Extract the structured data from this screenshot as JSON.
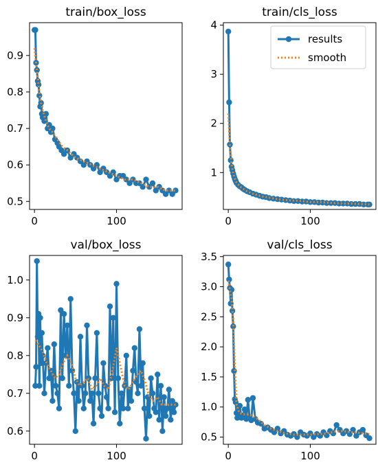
{
  "colors": {
    "results": "#1f77b4",
    "smooth": "#ff7f0e"
  },
  "legend": {
    "results_label": "results",
    "smooth_label": "smooth",
    "placement": "upper right of train/cls_loss panel"
  },
  "chart_data": [
    {
      "type": "line",
      "title": "train/box_loss",
      "xlabel": "",
      "ylabel": "",
      "xlim": [
        -6,
        180
      ],
      "ylim": [
        0.478,
        0.99
      ],
      "xticks": [
        0,
        100
      ],
      "yticks": [
        0.5,
        0.6,
        0.7,
        0.8,
        0.9
      ],
      "ytick_labels": [
        "0.5",
        "0.6",
        "0.7",
        "0.8",
        "0.9"
      ],
      "grid": false,
      "series": [
        {
          "name": "results",
          "x": [
            0,
            1,
            2,
            3,
            4,
            5,
            6,
            7,
            8,
            9,
            10,
            12,
            14,
            16,
            18,
            20,
            22,
            25,
            28,
            30,
            33,
            36,
            40,
            44,
            48,
            52,
            56,
            60,
            64,
            68,
            72,
            76,
            80,
            84,
            88,
            92,
            96,
            100,
            104,
            108,
            112,
            116,
            120,
            124,
            128,
            132,
            136,
            140,
            144,
            148,
            152,
            156,
            160,
            164,
            168,
            172
          ],
          "y": [
            0.97,
            0.97,
            0.88,
            0.86,
            0.83,
            0.82,
            0.79,
            0.76,
            0.77,
            0.74,
            0.73,
            0.72,
            0.74,
            0.7,
            0.71,
            0.69,
            0.7,
            0.67,
            0.66,
            0.65,
            0.64,
            0.63,
            0.64,
            0.62,
            0.63,
            0.62,
            0.61,
            0.6,
            0.61,
            0.6,
            0.59,
            0.6,
            0.58,
            0.59,
            0.58,
            0.57,
            0.58,
            0.56,
            0.57,
            0.57,
            0.56,
            0.55,
            0.56,
            0.55,
            0.55,
            0.54,
            0.56,
            0.54,
            0.55,
            0.53,
            0.54,
            0.53,
            0.52,
            0.53,
            0.52,
            0.53
          ]
        },
        {
          "name": "smooth",
          "x": [
            0,
            2,
            4,
            6,
            8,
            10,
            14,
            18,
            22,
            28,
            34,
            40,
            50,
            60,
            70,
            80,
            90,
            100,
            110,
            120,
            130,
            140,
            150,
            160,
            172
          ],
          "y": [
            0.92,
            0.88,
            0.84,
            0.8,
            0.77,
            0.75,
            0.72,
            0.7,
            0.69,
            0.67,
            0.65,
            0.64,
            0.62,
            0.61,
            0.6,
            0.59,
            0.58,
            0.57,
            0.56,
            0.56,
            0.55,
            0.54,
            0.54,
            0.53,
            0.53
          ]
        }
      ]
    },
    {
      "type": "line",
      "title": "train/cls_loss",
      "xlabel": "",
      "ylabel": "",
      "xlim": [
        -6,
        180
      ],
      "ylim": [
        0.25,
        4.05
      ],
      "xticks": [
        0,
        100
      ],
      "yticks": [
        1,
        2,
        3,
        4
      ],
      "ytick_labels": [
        "1",
        "2",
        "3",
        "4"
      ],
      "grid": false,
      "series": [
        {
          "name": "results",
          "x": [
            0,
            1,
            2,
            3,
            4,
            5,
            6,
            7,
            8,
            9,
            10,
            12,
            14,
            16,
            18,
            20,
            23,
            26,
            30,
            34,
            38,
            42,
            46,
            50,
            55,
            60,
            65,
            70,
            75,
            80,
            85,
            90,
            95,
            100,
            105,
            110,
            115,
            120,
            125,
            130,
            135,
            140,
            145,
            150,
            155,
            160,
            165,
            170,
            172
          ],
          "y": [
            3.87,
            2.43,
            1.57,
            1.25,
            1.12,
            1.05,
            0.98,
            0.92,
            0.87,
            0.83,
            0.79,
            0.75,
            0.72,
            0.7,
            0.67,
            0.65,
            0.62,
            0.6,
            0.57,
            0.55,
            0.53,
            0.51,
            0.5,
            0.48,
            0.47,
            0.46,
            0.45,
            0.44,
            0.43,
            0.42,
            0.42,
            0.41,
            0.41,
            0.4,
            0.4,
            0.39,
            0.39,
            0.38,
            0.38,
            0.38,
            0.37,
            0.37,
            0.37,
            0.36,
            0.36,
            0.36,
            0.35,
            0.35,
            0.35
          ]
        },
        {
          "name": "smooth",
          "x": [
            0,
            2,
            4,
            6,
            8,
            10,
            14,
            18,
            22,
            28,
            34,
            40,
            50,
            60,
            70,
            80,
            90,
            100,
            110,
            120,
            130,
            140,
            150,
            160,
            172
          ],
          "y": [
            2.2,
            1.55,
            1.18,
            0.98,
            0.88,
            0.8,
            0.72,
            0.67,
            0.63,
            0.58,
            0.55,
            0.52,
            0.49,
            0.46,
            0.44,
            0.43,
            0.42,
            0.4,
            0.4,
            0.39,
            0.38,
            0.37,
            0.37,
            0.36,
            0.35
          ]
        }
      ]
    },
    {
      "type": "line",
      "title": "val/box_loss",
      "xlabel": "",
      "ylabel": "",
      "xlim": [
        -6,
        180
      ],
      "ylim": [
        0.565,
        1.065
      ],
      "xticks": [
        0,
        100
      ],
      "yticks": [
        0.6,
        0.7,
        0.8,
        0.9,
        1.0
      ],
      "ytick_labels": [
        "0.6",
        "0.7",
        "0.8",
        "0.9",
        "1.0"
      ],
      "grid": false,
      "series": [
        {
          "name": "results",
          "x": [
            1,
            2,
            3,
            4,
            5,
            6,
            7,
            8,
            9,
            10,
            12,
            14,
            16,
            18,
            20,
            22,
            24,
            26,
            28,
            30,
            32,
            34,
            36,
            38,
            40,
            42,
            44,
            46,
            48,
            50,
            52,
            54,
            56,
            58,
            60,
            62,
            64,
            66,
            68,
            70,
            72,
            74,
            76,
            78,
            80,
            82,
            84,
            86,
            88,
            90,
            92,
            94,
            96,
            98,
            100,
            102,
            104,
            106,
            108,
            110,
            112,
            114,
            116,
            118,
            120,
            122,
            124,
            126,
            128,
            130,
            132,
            134,
            136,
            138,
            140,
            142,
            144,
            146,
            148,
            150,
            152,
            154,
            156,
            158,
            160,
            162,
            164,
            166,
            168,
            170,
            172
          ],
          "y": [
            0.72,
            0.77,
            1.05,
            0.85,
            0.91,
            0.72,
            0.9,
            0.78,
            0.86,
            0.8,
            0.7,
            0.78,
            0.82,
            0.74,
            0.76,
            0.68,
            0.83,
            0.72,
            0.7,
            0.66,
            0.92,
            0.74,
            0.91,
            0.8,
            0.88,
            0.72,
            0.95,
            0.76,
            0.7,
            0.6,
            0.73,
            0.68,
            0.85,
            0.72,
            0.66,
            0.7,
            0.88,
            0.74,
            0.68,
            0.7,
            0.62,
            0.74,
            0.86,
            0.7,
            0.66,
            0.64,
            0.78,
            0.72,
            0.69,
            0.66,
            0.93,
            0.74,
            0.9,
            0.65,
            0.99,
            0.74,
            0.62,
            0.7,
            0.66,
            0.72,
            0.8,
            0.66,
            0.71,
            0.68,
            0.76,
            0.82,
            0.73,
            0.7,
            0.87,
            0.72,
            0.78,
            0.66,
            0.58,
            0.69,
            0.64,
            0.74,
            0.7,
            0.66,
            0.65,
            0.75,
            0.63,
            0.72,
            0.6,
            0.69,
            0.64,
            0.66,
            0.71,
            0.63,
            0.68,
            0.65,
            0.67
          ]
        },
        {
          "name": "smooth",
          "x": [
            1,
            5,
            10,
            15,
            20,
            25,
            30,
            35,
            40,
            45,
            50,
            55,
            60,
            65,
            70,
            75,
            80,
            85,
            90,
            95,
            100,
            105,
            110,
            115,
            120,
            125,
            130,
            135,
            140,
            145,
            150,
            155,
            160,
            165,
            172
          ],
          "y": [
            0.84,
            0.83,
            0.81,
            0.78,
            0.76,
            0.74,
            0.75,
            0.78,
            0.8,
            0.78,
            0.74,
            0.72,
            0.73,
            0.74,
            0.71,
            0.72,
            0.74,
            0.72,
            0.71,
            0.76,
            0.82,
            0.77,
            0.72,
            0.71,
            0.73,
            0.75,
            0.76,
            0.73,
            0.69,
            0.68,
            0.69,
            0.67,
            0.67,
            0.67,
            0.67
          ]
        }
      ]
    },
    {
      "type": "line",
      "title": "val/cls_loss",
      "xlabel": "",
      "ylabel": "",
      "xlim": [
        -6,
        180
      ],
      "ylim": [
        0.38,
        3.52
      ],
      "xticks": [
        0,
        100
      ],
      "yticks": [
        0.5,
        1.0,
        1.5,
        2.0,
        2.5,
        3.0,
        3.5
      ],
      "ytick_labels": [
        "0.5",
        "1.0",
        "1.5",
        "2.0",
        "2.5",
        "3.0",
        "3.5"
      ],
      "grid": false,
      "series": [
        {
          "name": "results",
          "x": [
            0,
            1,
            2,
            3,
            4,
            5,
            6,
            7,
            8,
            9,
            10,
            11,
            12,
            13,
            14,
            16,
            18,
            20,
            22,
            24,
            26,
            28,
            30,
            33,
            36,
            40,
            44,
            48,
            52,
            56,
            60,
            64,
            68,
            72,
            76,
            80,
            84,
            88,
            92,
            96,
            100,
            104,
            108,
            112,
            116,
            120,
            124,
            128,
            132,
            136,
            140,
            144,
            148,
            152,
            156,
            160,
            164,
            168,
            172
          ],
          "y": [
            3.37,
            3.12,
            2.98,
            2.72,
            2.95,
            2.6,
            2.34,
            1.6,
            1.13,
            1.08,
            0.9,
            0.82,
            0.96,
            0.84,
            1.02,
            0.82,
            0.86,
            0.96,
            0.8,
            1.12,
            0.82,
            0.78,
            1.15,
            0.8,
            0.74,
            0.72,
            0.64,
            0.66,
            0.62,
            0.58,
            0.64,
            0.56,
            0.6,
            0.54,
            0.52,
            0.55,
            0.5,
            0.58,
            0.54,
            0.52,
            0.56,
            0.5,
            0.55,
            0.52,
            0.58,
            0.53,
            0.6,
            0.56,
            0.7,
            0.62,
            0.56,
            0.6,
            0.55,
            0.62,
            0.52,
            0.58,
            0.62,
            0.53,
            0.48
          ]
        },
        {
          "name": "smooth",
          "x": [
            0,
            2,
            4,
            6,
            8,
            10,
            12,
            14,
            18,
            22,
            26,
            30,
            36,
            44,
            52,
            60,
            70,
            80,
            90,
            100,
            110,
            120,
            130,
            140,
            150,
            160,
            172
          ],
          "y": [
            3.1,
            2.95,
            2.8,
            2.45,
            1.65,
            1.05,
            0.95,
            0.9,
            0.88,
            0.88,
            0.87,
            0.85,
            0.8,
            0.7,
            0.64,
            0.6,
            0.56,
            0.54,
            0.54,
            0.54,
            0.55,
            0.56,
            0.59,
            0.6,
            0.58,
            0.57,
            0.55
          ]
        }
      ]
    }
  ]
}
